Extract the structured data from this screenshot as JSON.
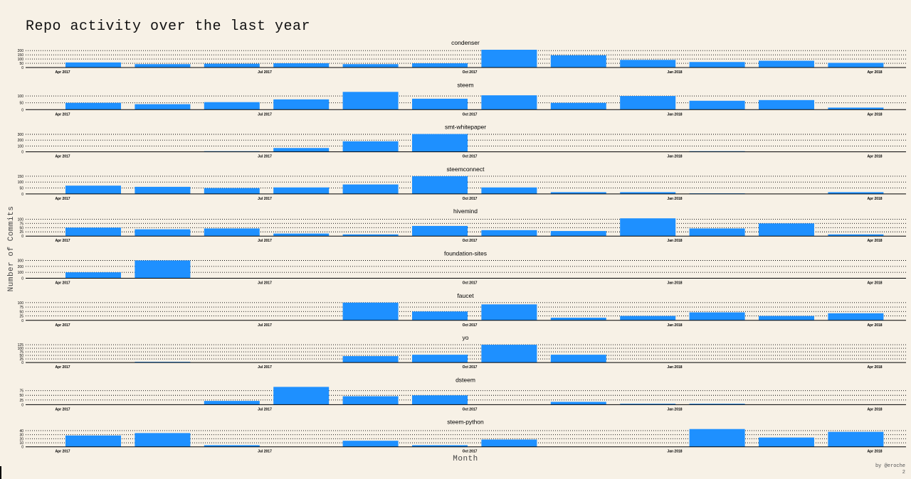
{
  "title": "Repo activity over the last year",
  "ylabel": "Number of Commits",
  "xlabel": "Month",
  "credit": "by @eroche",
  "page_number": "2",
  "colors": {
    "bar": "#1e90ff",
    "background": "#f7f1e6",
    "grid": "#000000"
  },
  "chart_data": [
    {
      "type": "bar",
      "title": "condenser",
      "categories": [
        "2017-04",
        "2017-05",
        "2017-06",
        "2017-07",
        "2017-08",
        "2017-09",
        "2017-10",
        "2017-11",
        "2017-12",
        "2018-01",
        "2018-02",
        "2018-03"
      ],
      "values": [
        60,
        40,
        45,
        50,
        40,
        50,
        210,
        145,
        90,
        65,
        80,
        55
      ],
      "yticks": [
        0,
        50,
        100,
        150,
        200
      ],
      "xticks": [
        "Apr 2017",
        "Jul 2017",
        "Oct 2017",
        "Jan 2018",
        "Apr 2018"
      ],
      "ylim": [
        0,
        210
      ],
      "grid": true,
      "legend": "none"
    },
    {
      "type": "bar",
      "title": "steem",
      "categories": [
        "2017-04",
        "2017-05",
        "2017-06",
        "2017-07",
        "2017-08",
        "2017-09",
        "2017-10",
        "2017-11",
        "2017-12",
        "2018-01",
        "2018-02",
        "2018-03"
      ],
      "values": [
        50,
        40,
        55,
        75,
        130,
        80,
        105,
        50,
        100,
        65,
        70,
        15
      ],
      "yticks": [
        0,
        50,
        100
      ],
      "xticks": [
        "Apr 2017",
        "Jul 2017",
        "Oct 2017",
        "Jan 2018",
        "Apr 2018"
      ],
      "ylim": [
        0,
        130
      ],
      "grid": true,
      "legend": "none"
    },
    {
      "type": "bar",
      "title": "smt-whitepaper",
      "categories": [
        "2017-04",
        "2017-05",
        "2017-06",
        "2017-07",
        "2017-08",
        "2017-09",
        "2017-10",
        "2017-11",
        "2017-12",
        "2018-01",
        "2018-02",
        "2018-03"
      ],
      "values": [
        0,
        0,
        10,
        65,
        180,
        305,
        0,
        0,
        0,
        10,
        0,
        0
      ],
      "yticks": [
        0,
        100,
        200,
        300
      ],
      "xticks": [
        "Apr 2017",
        "Jul 2017",
        "Oct 2017",
        "Jan 2018",
        "Apr 2018"
      ],
      "ylim": [
        0,
        305
      ],
      "grid": true,
      "legend": "none"
    },
    {
      "type": "bar",
      "title": "steemconnect",
      "categories": [
        "2017-04",
        "2017-05",
        "2017-06",
        "2017-07",
        "2017-08",
        "2017-09",
        "2017-10",
        "2017-11",
        "2017-12",
        "2018-01",
        "2018-02",
        "2018-03"
      ],
      "values": [
        70,
        60,
        50,
        55,
        80,
        150,
        55,
        15,
        15,
        5,
        0,
        15
      ],
      "yticks": [
        0,
        50,
        100,
        150
      ],
      "xticks": [
        "Apr 2017",
        "Jul 2017",
        "Oct 2017",
        "Jan 2018",
        "Apr 2018"
      ],
      "ylim": [
        0,
        150
      ],
      "grid": true,
      "legend": "none"
    },
    {
      "type": "bar",
      "title": "hivemind",
      "categories": [
        "2017-04",
        "2017-05",
        "2017-06",
        "2017-07",
        "2017-08",
        "2017-09",
        "2017-10",
        "2017-11",
        "2017-12",
        "2018-01",
        "2018-02",
        "2018-03"
      ],
      "values": [
        50,
        40,
        45,
        15,
        10,
        60,
        35,
        30,
        105,
        45,
        75,
        10
      ],
      "yticks": [
        0,
        25,
        50,
        75,
        100
      ],
      "xticks": [
        "Apr 2017",
        "Jul 2017",
        "Oct 2017",
        "Jan 2018",
        "Apr 2018"
      ],
      "ylim": [
        0,
        105
      ],
      "grid": true,
      "legend": "none"
    },
    {
      "type": "bar",
      "title": "foundation-sites",
      "categories": [
        "2017-04",
        "2017-05",
        "2017-06",
        "2017-07",
        "2017-08",
        "2017-09",
        "2017-10",
        "2017-11",
        "2017-12",
        "2018-01",
        "2018-02",
        "2018-03"
      ],
      "values": [
        100,
        300,
        0,
        0,
        0,
        0,
        0,
        0,
        0,
        0,
        0,
        0
      ],
      "yticks": [
        0,
        100,
        200,
        300
      ],
      "xticks": [
        "Apr 2017",
        "Jul 2017",
        "Oct 2017",
        "Jan 2018",
        "Apr 2018"
      ],
      "ylim": [
        0,
        300
      ],
      "grid": true,
      "legend": "none"
    },
    {
      "type": "bar",
      "title": "faucet",
      "categories": [
        "2017-04",
        "2017-05",
        "2017-06",
        "2017-07",
        "2017-08",
        "2017-09",
        "2017-10",
        "2017-11",
        "2017-12",
        "2018-01",
        "2018-02",
        "2018-03"
      ],
      "values": [
        0,
        0,
        0,
        0,
        100,
        50,
        90,
        15,
        25,
        45,
        25,
        40
      ],
      "yticks": [
        0,
        25,
        50,
        75,
        100
      ],
      "xticks": [
        "Apr 2017",
        "Jul 2017",
        "Oct 2017",
        "Jan 2018",
        "Apr 2018"
      ],
      "ylim": [
        0,
        100
      ],
      "grid": true,
      "legend": "none"
    },
    {
      "type": "bar",
      "title": "yo",
      "categories": [
        "2017-04",
        "2017-05",
        "2017-06",
        "2017-07",
        "2017-08",
        "2017-09",
        "2017-10",
        "2017-11",
        "2017-12",
        "2018-01",
        "2018-02",
        "2018-03"
      ],
      "values": [
        0,
        5,
        0,
        0,
        45,
        55,
        125,
        55,
        0,
        0,
        0,
        0
      ],
      "yticks": [
        0,
        25,
        50,
        75,
        100,
        125
      ],
      "xticks": [
        "Apr 2017",
        "Jul 2017",
        "Oct 2017",
        "Jan 2018",
        "Apr 2018"
      ],
      "ylim": [
        0,
        125
      ],
      "grid": true,
      "legend": "none"
    },
    {
      "type": "bar",
      "title": "dsteem",
      "categories": [
        "2017-04",
        "2017-05",
        "2017-06",
        "2017-07",
        "2017-08",
        "2017-09",
        "2017-10",
        "2017-11",
        "2017-12",
        "2018-01",
        "2018-02",
        "2018-03"
      ],
      "values": [
        0,
        0,
        20,
        95,
        45,
        50,
        0,
        15,
        5,
        5,
        0,
        0
      ],
      "yticks": [
        0,
        25,
        50,
        75
      ],
      "xticks": [
        "Apr 2017",
        "Jul 2017",
        "Oct 2017",
        "Jan 2018",
        "Apr 2018"
      ],
      "ylim": [
        0,
        95
      ],
      "grid": true,
      "legend": "none"
    },
    {
      "type": "bar",
      "title": "steem-python",
      "categories": [
        "2017-04",
        "2017-05",
        "2017-06",
        "2017-07",
        "2017-08",
        "2017-09",
        "2017-10",
        "2017-11",
        "2017-12",
        "2018-01",
        "2018-02",
        "2018-03"
      ],
      "values": [
        28,
        34,
        4,
        0,
        15,
        4,
        18,
        0,
        0,
        44,
        23,
        37
      ],
      "yticks": [
        0,
        10,
        20,
        30,
        40
      ],
      "xticks": [
        "Apr 2017",
        "Jul 2017",
        "Oct 2017",
        "Jan 2018",
        "Apr 2018"
      ],
      "ylim": [
        0,
        44
      ],
      "grid": true,
      "legend": "none"
    }
  ]
}
